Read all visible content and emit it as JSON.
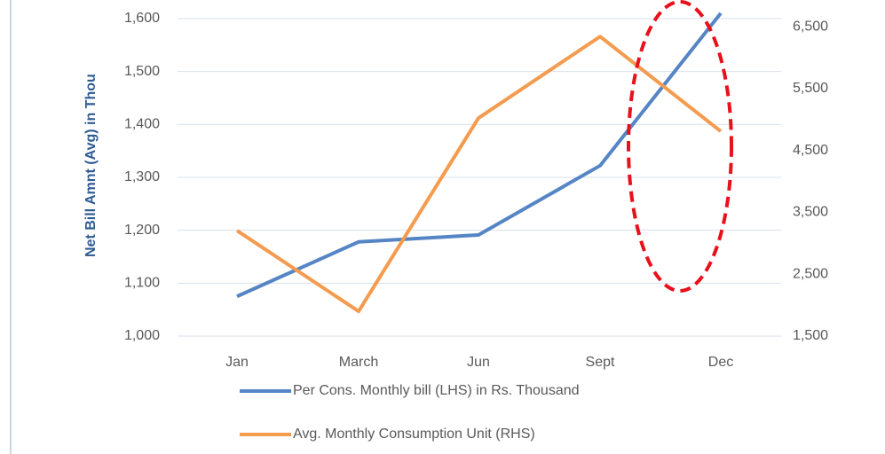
{
  "chart_data": {
    "type": "line",
    "y_axis_label": "Net Bill Amnt (Avg) in Thou",
    "categories": [
      "Jan",
      "March",
      "Jun",
      "Sept",
      "Dec"
    ],
    "series": [
      {
        "name": "Per Cons. Monthly bill (LHS) in Rs. Thousand",
        "color": "#5585c5",
        "values": [
          1075,
          1178,
          1191,
          1322,
          1610
        ]
      },
      {
        "name": "Avg. Monthly Consumption Unit (RHS)",
        "color": "#f59b4e",
        "axis": "y2",
        "values": [
          3205,
          1900,
          5024,
          6342,
          4810
        ]
      }
    ],
    "ylim": [
      1000,
      1630
    ],
    "yticks": [
      {
        "value": 1000,
        "label": "1,000"
      },
      {
        "value": 1100,
        "label": "1,100"
      },
      {
        "value": 1200,
        "label": "1,200"
      },
      {
        "value": 1300,
        "label": "1,300"
      },
      {
        "value": 1400,
        "label": "1,400"
      },
      {
        "value": 1500,
        "label": "1,500"
      },
      {
        "value": 1600,
        "label": "1,600"
      }
    ],
    "y2lim": [
      1500,
      6890
    ],
    "y2ticks": [
      {
        "value": 1500,
        "label": "1,500"
      },
      {
        "value": 2500,
        "label": "2,500"
      },
      {
        "value": 3500,
        "label": "3,500"
      },
      {
        "value": 4500,
        "label": "4,500"
      },
      {
        "value": 5500,
        "label": "5,500"
      },
      {
        "value": 6500,
        "label": "6,500"
      }
    ],
    "grid": true,
    "legend": "bottom"
  }
}
